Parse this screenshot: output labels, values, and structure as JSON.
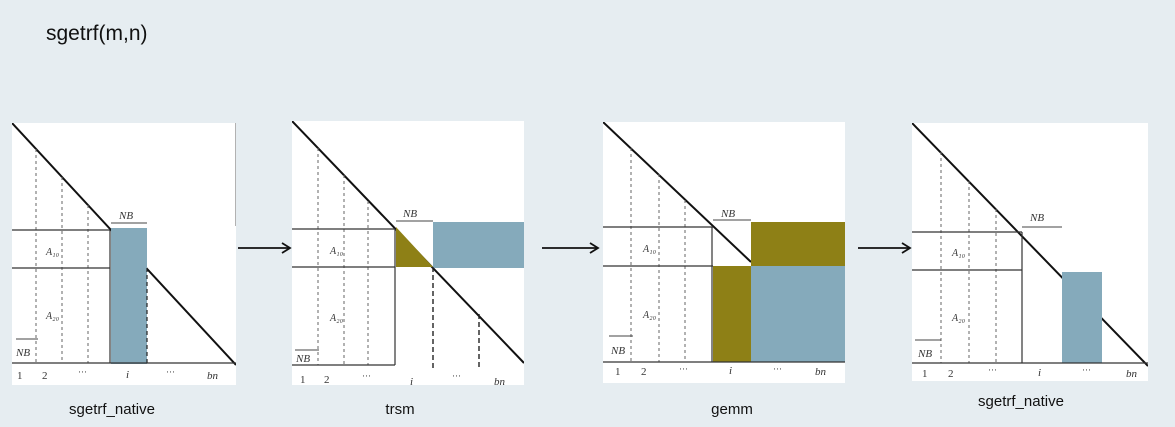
{
  "title": "sgetrf(m,n)",
  "colors": {
    "background": "#e6edf1",
    "blue_block": "#85aabb",
    "olive_block": "#8e8016",
    "line": "#222222"
  },
  "labels": {
    "nb": "NB",
    "a10": "A₁₀",
    "a20": "A₂₀",
    "tick_1": "1",
    "tick_2": "2",
    "tick_dots": "···",
    "tick_i": "i",
    "tick_bn": "bn"
  },
  "steps": [
    {
      "caption": "sgetrf_native"
    },
    {
      "caption": "trsm"
    },
    {
      "caption": "gemm"
    },
    {
      "caption": "sgetrf_native"
    }
  ],
  "arrows": [
    "right-arrow",
    "right-arrow",
    "right-arrow"
  ]
}
